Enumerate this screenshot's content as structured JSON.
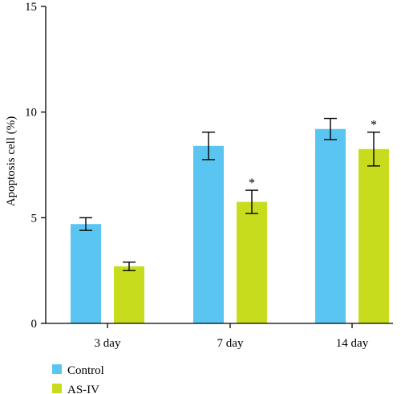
{
  "chart_data": {
    "type": "bar",
    "title": "",
    "xlabel": "",
    "ylabel": "Apoptosis cell (%)",
    "ylim": [
      0,
      15
    ],
    "yticks": [
      0,
      5,
      10,
      15
    ],
    "categories": [
      "3 day",
      "7 day",
      "14 day"
    ],
    "series": [
      {
        "name": "Control",
        "color": "#5bc5f2",
        "values": [
          4.7,
          8.4,
          9.2
        ],
        "errors": [
          0.3,
          0.65,
          0.5
        ],
        "annotations": [
          "",
          "",
          ""
        ]
      },
      {
        "name": "AS-IV",
        "color": "#c8dc1e",
        "values": [
          2.7,
          5.75,
          8.25
        ],
        "errors": [
          0.2,
          0.55,
          0.8
        ],
        "annotations": [
          "",
          "*",
          "*"
        ]
      }
    ],
    "grid": false,
    "legend_position": "bottom-left"
  }
}
